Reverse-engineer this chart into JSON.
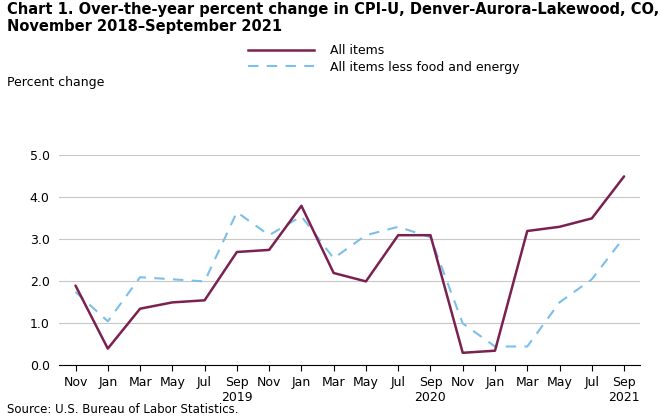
{
  "title_line1": "Chart 1. Over-the-year percent change in CPI-U, Denver-Aurora-Lakewood, CO,",
  "title_line2": "November 2018–September 2021",
  "ylabel": "Percent change",
  "source": "Source: U.S. Bureau of Labor Statistics.",
  "ylim": [
    0.0,
    5.0
  ],
  "yticks": [
    0.0,
    1.0,
    2.0,
    3.0,
    4.0,
    5.0
  ],
  "x_labels": [
    "Nov",
    "Jan",
    "Mar",
    "May",
    "Jul",
    "Sep\n2019",
    "Nov",
    "Jan",
    "Mar",
    "May",
    "Jul",
    "Sep\n2020",
    "Nov",
    "Jan",
    "Mar",
    "May",
    "Jul",
    "Sep\n2021"
  ],
  "all_items": [
    1.9,
    0.4,
    1.35,
    1.5,
    1.55,
    2.7,
    2.75,
    3.8,
    2.2,
    2.0,
    3.1,
    3.1,
    0.3,
    0.35,
    3.2,
    3.3,
    3.5,
    4.5
  ],
  "all_items_less": [
    1.75,
    1.05,
    2.1,
    2.05,
    2.0,
    3.65,
    3.1,
    3.55,
    2.55,
    3.1,
    3.3,
    3.05,
    1.0,
    0.45,
    0.45,
    1.5,
    2.05,
    3.05
  ],
  "line1_color": "#7B2150",
  "line2_color": "#7BBFEA",
  "legend_labels": [
    "All items",
    "All items less food and energy"
  ],
  "title_fontsize": 10.5,
  "axis_fontsize": 9,
  "legend_fontsize": 9,
  "ylabel_fontsize": 9
}
